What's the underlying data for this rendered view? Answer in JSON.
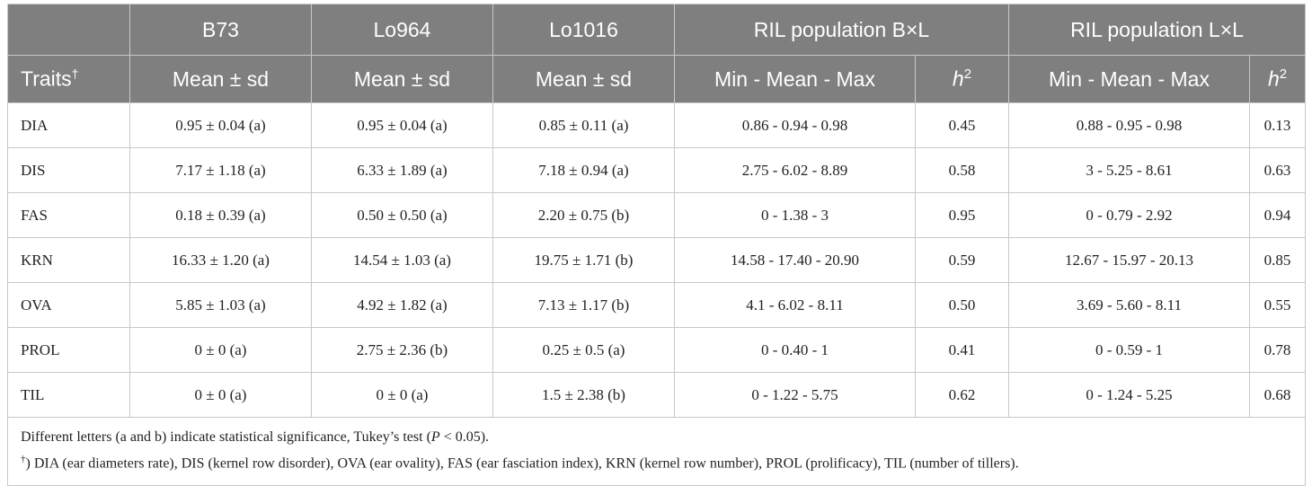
{
  "table": {
    "group_headers": [
      "B73",
      "Lo964",
      "Lo1016",
      "RIL population B×L",
      "RIL population L×L"
    ],
    "sub_headers": {
      "traits": "Traits",
      "traits_mark": "†",
      "mean_sd": "Mean ± sd",
      "min_mean_max": "Min - Mean - Max",
      "h2_letter": "h",
      "h2_exp": "2"
    },
    "rows": [
      {
        "trait": "DIA",
        "b73": "0.95 ± 0.04 (a)",
        "lo964": "0.95 ± 0.04 (a)",
        "lo1016": "0.85 ± 0.11 (a)",
        "bxl_range": "0.86 - 0.94 - 0.98",
        "bxl_h2": "0.45",
        "lxl_range": "0.88 - 0.95 - 0.98",
        "lxl_h2": "0.13"
      },
      {
        "trait": "DIS",
        "b73": "7.17 ± 1.18 (a)",
        "lo964": "6.33 ± 1.89 (a)",
        "lo1016": "7.18 ± 0.94 (a)",
        "bxl_range": "2.75 - 6.02 - 8.89",
        "bxl_h2": "0.58",
        "lxl_range": "3 - 5.25 - 8.61",
        "lxl_h2": "0.63"
      },
      {
        "trait": "FAS",
        "b73": "0.18 ± 0.39 (a)",
        "lo964": "0.50 ± 0.50 (a)",
        "lo1016": "2.20 ± 0.75 (b)",
        "bxl_range": "0 - 1.38 - 3",
        "bxl_h2": "0.95",
        "lxl_range": "0 - 0.79 - 2.92",
        "lxl_h2": "0.94"
      },
      {
        "trait": "KRN",
        "b73": "16.33 ± 1.20 (a)",
        "lo964": "14.54 ± 1.03 (a)",
        "lo1016": "19.75 ± 1.71 (b)",
        "bxl_range": "14.58 - 17.40 - 20.90",
        "bxl_h2": "0.59",
        "lxl_range": "12.67 - 15.97 - 20.13",
        "lxl_h2": "0.85"
      },
      {
        "trait": "OVA",
        "b73": "5.85 ± 1.03 (a)",
        "lo964": "4.92 ± 1.82 (a)",
        "lo1016": "7.13 ± 1.17 (b)",
        "bxl_range": "4.1 - 6.02 - 8.11",
        "bxl_h2": "0.50",
        "lxl_range": "3.69 - 5.60 - 8.11",
        "lxl_h2": "0.55"
      },
      {
        "trait": "PROL",
        "b73": "0 ± 0 (a)",
        "lo964": "2.75 ± 2.36 (b)",
        "lo1016": "0.25 ± 0.5 (a)",
        "bxl_range": "0 - 0.40 - 1",
        "bxl_h2": "0.41",
        "lxl_range": "0 - 0.59 - 1",
        "lxl_h2": "0.78"
      },
      {
        "trait": "TIL",
        "b73": "0 ± 0 (a)",
        "lo964": "0 ± 0 (a)",
        "lo1016": "1.5 ± 2.38 (b)",
        "bxl_range": "0 - 1.22 - 5.75",
        "bxl_h2": "0.62",
        "lxl_range": "0 - 1.24 - 5.25",
        "lxl_h2": "0.68"
      }
    ],
    "footnotes": {
      "line1_pre": "Different letters (a and b) indicate statistical significance, Tukey’s test (",
      "line1_p": "P",
      "line1_post": " < 0.05).",
      "line2_mark": "†",
      "line2_text": ") DIA (ear diameters rate), DIS (kernel row disorder), OVA (ear ovality), FAS (ear fasciation index), KRN (kernel row number), PROL (prolificacy), TIL (number of tillers)."
    }
  }
}
